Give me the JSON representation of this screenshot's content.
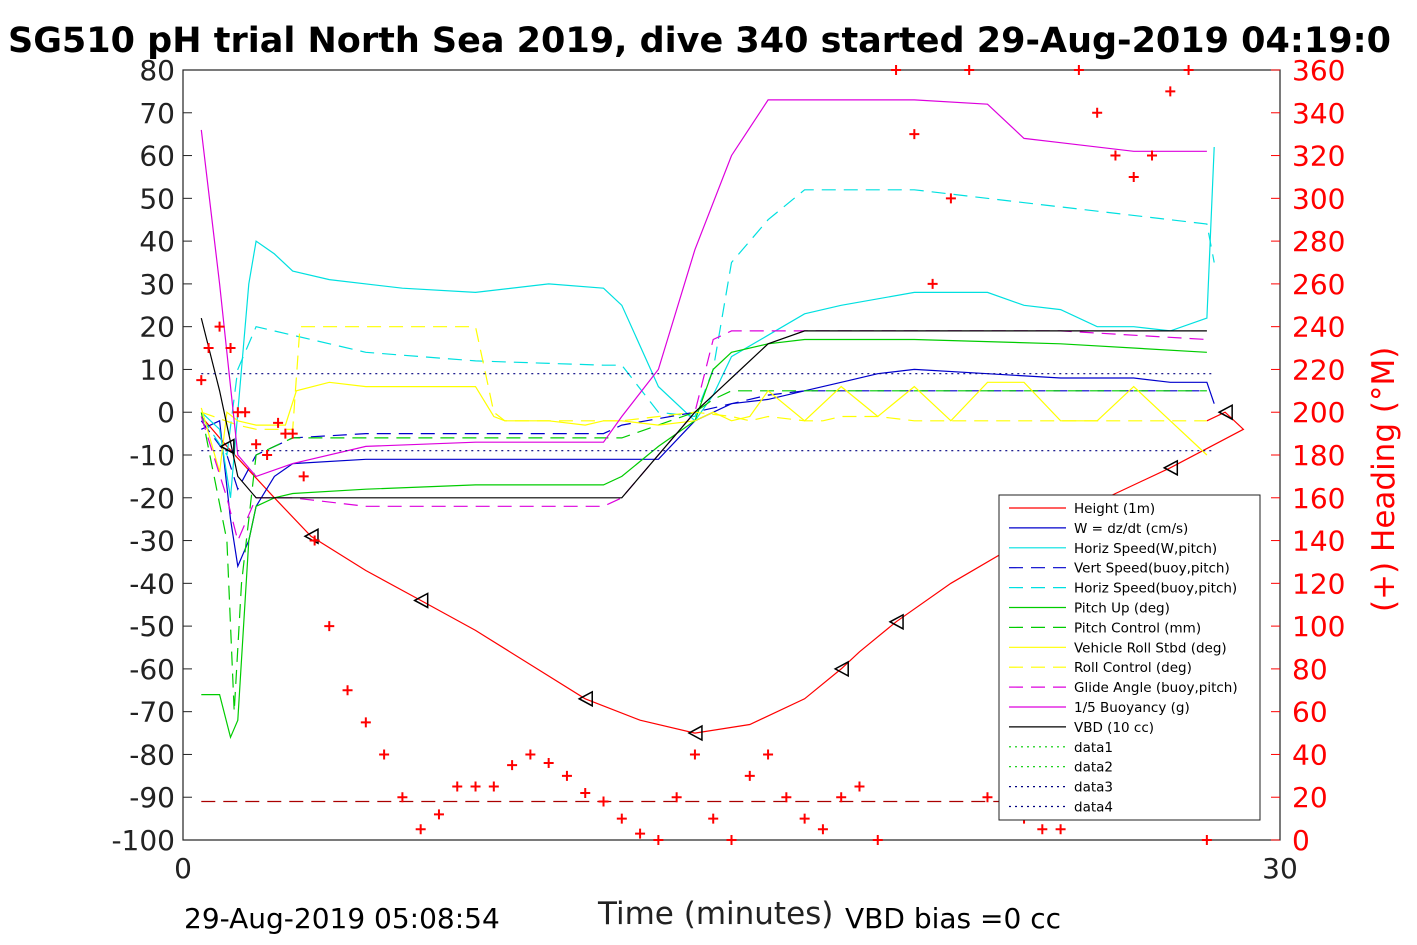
{
  "chart_data": {
    "type": "line",
    "title": "SG510 pH trial North Sea 2019, dive 340 started 29-Aug-2019 04:19:0",
    "xlabel": "Time (minutes)",
    "ylabel_right": "(+) Heading (°M)",
    "xlim": [
      0,
      30
    ],
    "ylim": [
      -100,
      80
    ],
    "ylim_right": [
      0,
      360
    ],
    "x_ticks": [
      "0",
      "30"
    ],
    "y_ticks": [
      "80",
      "70",
      "60",
      "50",
      "40",
      "30",
      "20",
      "10",
      "0",
      "-10",
      "-20",
      "-30",
      "-40",
      "-50",
      "-60",
      "-70",
      "-80",
      "-90",
      "-100"
    ],
    "y_ticks_right": [
      "360",
      "340",
      "320",
      "300",
      "280",
      "260",
      "240",
      "220",
      "200",
      "180",
      "160",
      "140",
      "120",
      "100",
      "80",
      "60",
      "40",
      "20",
      "0"
    ],
    "footer_left": "29-Aug-2019 05:08:54",
    "footer_right": "VBD bias =0 cc",
    "legend_position": "lower-right",
    "series": [
      {
        "name": "Height (1m)",
        "color": "#ff0000",
        "style": "solid",
        "x": [
          0.5,
          1.2,
          2.5,
          3.5,
          5,
          6.5,
          8,
          9.5,
          11,
          12.5,
          14,
          15.5,
          17,
          18,
          18.5,
          19.5,
          21,
          23,
          25,
          27,
          29,
          28.5,
          28
        ],
        "y": [
          -1,
          -8,
          -20,
          -29,
          -37,
          -44,
          -51,
          -59,
          -67,
          -72,
          -75,
          -73,
          -67,
          -60,
          -56,
          -49,
          -40,
          -30,
          -21,
          -13,
          -4,
          0,
          -2
        ]
      },
      {
        "name": "W = dz/dt (cm/s)",
        "color": "#0000cc",
        "style": "solid",
        "x": [
          0.5,
          1,
          1.3,
          1.5,
          1.8,
          2,
          2.5,
          3,
          5,
          8,
          10,
          11,
          12,
          13,
          14,
          15,
          16,
          17,
          18,
          19,
          20,
          22,
          24,
          26,
          27,
          28,
          28.2
        ],
        "y": [
          -4,
          -2,
          -25,
          -36,
          -30,
          -22,
          -15,
          -12,
          -11,
          -11,
          -11,
          -11,
          -11,
          -11,
          -2,
          2,
          3,
          5,
          7,
          9,
          10,
          9,
          8,
          8,
          7,
          7,
          2
        ]
      },
      {
        "name": "Horiz Speed(W,pitch)",
        "color": "#00e0e0",
        "style": "solid",
        "x": [
          0.5,
          1,
          1.3,
          1.5,
          1.8,
          2,
          2.5,
          3,
          4,
          6,
          8,
          10,
          11.5,
          12,
          13,
          14,
          14.5,
          15,
          16,
          17,
          18,
          20,
          22,
          23,
          24,
          25,
          26,
          27,
          28,
          28.2
        ],
        "y": [
          0,
          -4,
          -20,
          0,
          30,
          40,
          37,
          33,
          31,
          29,
          28,
          30,
          29,
          25,
          6,
          -2,
          4,
          13,
          18,
          23,
          25,
          28,
          28,
          25,
          24,
          20,
          20,
          19,
          22,
          62
        ]
      },
      {
        "name": "Vert Speed(buoy,pitch)",
        "color": "#0000cc",
        "style": "dashed",
        "x": [
          0.5,
          1.2,
          1.5,
          2,
          3,
          5,
          8,
          11.5,
          12,
          14,
          15,
          16,
          17,
          20,
          24,
          28
        ],
        "y": [
          -2,
          -10,
          -18,
          -10,
          -6,
          -5,
          -5,
          -5,
          -3,
          0,
          2,
          4,
          5,
          5,
          5,
          5
        ]
      },
      {
        "name": "Horiz Speed(buoy,pitch)",
        "color": "#00e0e0",
        "style": "dashed",
        "x": [
          0.5,
          1.2,
          1.5,
          2,
          3,
          5,
          8,
          11.5,
          12,
          13,
          14,
          14.5,
          15,
          16,
          17,
          20,
          24,
          28,
          28.2
        ],
        "y": [
          -1,
          -10,
          10,
          20,
          18,
          14,
          12,
          11,
          11,
          0,
          -1,
          10,
          35,
          45,
          52,
          52,
          48,
          44,
          35
        ]
      },
      {
        "name": "Pitch Up (deg)",
        "color": "#00cc00",
        "style": "solid",
        "x": [
          0.5,
          1,
          1.3,
          1.5,
          1.8,
          2,
          2.5,
          3,
          5,
          8,
          11.5,
          12,
          13,
          14,
          14.5,
          15,
          16,
          17,
          20,
          24,
          28
        ],
        "y": [
          -66,
          -66,
          -76,
          -72,
          -30,
          -22,
          -20,
          -19,
          -18,
          -17,
          -17,
          -15,
          -8,
          -2,
          10,
          14,
          16,
          17,
          17,
          16,
          14
        ]
      },
      {
        "name": "Pitch Control (mm)",
        "color": "#00cc00",
        "style": "dashed",
        "x": [
          0.5,
          1.2,
          1.4,
          1.6,
          2,
          3,
          5,
          8,
          11.5,
          12,
          14,
          14.5,
          15,
          16,
          20,
          24,
          28
        ],
        "y": [
          0,
          -30,
          -70,
          -40,
          -10,
          -6,
          -6,
          -6,
          -6,
          -6,
          0,
          3,
          5,
          5,
          5,
          5,
          5
        ]
      },
      {
        "name": "Vehicle Roll Stbd (deg)",
        "color": "#ffff00",
        "style": "solid",
        "x": [
          0.5,
          1,
          1.2,
          1.5,
          2,
          2.8,
          3.1,
          4,
          5,
          8,
          8.5,
          8.8,
          10,
          11,
          11.5,
          12,
          13,
          14,
          14.5,
          15,
          15.5,
          16,
          17,
          18,
          19,
          20,
          21,
          22,
          23,
          24,
          25,
          26,
          27,
          28
        ],
        "y": [
          1,
          -14,
          0,
          -2,
          -3,
          -3,
          5,
          7,
          6,
          6,
          -1,
          -2,
          -2,
          -3,
          -2,
          -2,
          -3,
          -2,
          0,
          -2,
          -1,
          5,
          -2,
          6,
          -1,
          6,
          -2,
          7,
          7,
          -2,
          -2,
          6,
          -2,
          -10
        ]
      },
      {
        "name": "Roll Control (deg)",
        "color": "#ffff00",
        "style": "dashed",
        "x": [
          0.5,
          1.5,
          2,
          3,
          3.2,
          8,
          8.5,
          8.8,
          11.5,
          12,
          14,
          15,
          15.5,
          16,
          17,
          17.5,
          18,
          19,
          20,
          22,
          23,
          24,
          25,
          26,
          27,
          28
        ],
        "y": [
          0,
          -3,
          -4,
          -4,
          20,
          20,
          0,
          -2,
          -2,
          -2,
          0,
          -1,
          -2,
          -1,
          -2,
          -2,
          -1,
          -1,
          -2,
          -2,
          -2,
          -2,
          -2,
          -2,
          -2,
          -2
        ]
      },
      {
        "name": "Glide Angle (buoy,pitch)",
        "color": "#dd00dd",
        "style": "dashed",
        "x": [
          0.5,
          1.2,
          1.5,
          2,
          3,
          5,
          8,
          11.5,
          12,
          14,
          14.5,
          15,
          16,
          17,
          20,
          24,
          28
        ],
        "y": [
          -1,
          -20,
          -30,
          -20,
          -20,
          -22,
          -22,
          -22,
          -20,
          0,
          17,
          19,
          19,
          19,
          19,
          19,
          17
        ]
      },
      {
        "name": "1/5 Buoyancy (g)",
        "color": "#dd00dd",
        "style": "solid",
        "x": [
          0.5,
          1,
          1.5,
          2,
          3,
          5,
          8,
          11.5,
          12,
          13,
          14,
          15,
          16,
          20,
          22,
          23,
          24,
          26,
          28
        ],
        "y": [
          66,
          30,
          -10,
          -15,
          -12,
          -8,
          -7,
          -7,
          -1,
          10,
          38,
          60,
          73,
          73,
          72,
          64,
          63,
          61,
          61
        ]
      },
      {
        "name": "VBD (10 cc)",
        "color": "#000000",
        "style": "solid",
        "x": [
          0.5,
          1,
          1.5,
          2,
          5,
          11.5,
          12,
          14,
          15,
          16,
          17,
          28
        ],
        "y": [
          22,
          5,
          -15,
          -20,
          -20,
          -20,
          -20,
          0,
          8,
          16,
          19,
          19
        ]
      },
      {
        "name": "data1",
        "color": "#00cc00",
        "style": "dotted",
        "x": [],
        "y": []
      },
      {
        "name": "data2",
        "color": "#00cc00",
        "style": "dotted",
        "x": [],
        "y": []
      },
      {
        "name": "data3",
        "color": "#000080",
        "style": "dotted",
        "x": [
          0.5,
          28.2
        ],
        "y": [
          9,
          9
        ]
      },
      {
        "name": "data4",
        "color": "#000080",
        "style": "dotted",
        "x": [
          0.5,
          28.2
        ],
        "y": [
          -9,
          -9
        ]
      }
    ],
    "reference_line": {
      "color": "#aa0000",
      "style": "dashed",
      "y": -91
    },
    "heading_series": {
      "name": "(+) Heading (°M)",
      "color": "#ff0000",
      "marker": "+",
      "x": [
        0.5,
        0.7,
        1.0,
        1.3,
        1.5,
        1.7,
        2,
        2.3,
        2.6,
        2.8,
        3,
        3.3,
        3.6,
        4,
        4.5,
        5,
        5.5,
        6,
        6.5,
        7,
        7.5,
        8,
        8.5,
        9,
        9.5,
        10,
        10.5,
        11,
        11.5,
        12,
        12.5,
        13,
        13.5,
        14,
        14.5,
        15,
        15.5,
        16,
        16.5,
        17,
        17.5,
        18,
        18.5,
        19,
        19.5,
        20,
        20.5,
        21,
        21.5,
        22,
        22.5,
        23,
        23.5,
        24,
        24.5,
        25,
        25.5,
        26,
        26.5,
        27,
        27.5,
        28
      ],
      "y": [
        215,
        230,
        240,
        230,
        200,
        200,
        185,
        180,
        195,
        190,
        190,
        170,
        140,
        100,
        70,
        55,
        40,
        20,
        5,
        12,
        25,
        25,
        25,
        35,
        40,
        36,
        30,
        22,
        18,
        10,
        3,
        0,
        20,
        40,
        10,
        0,
        30,
        40,
        20,
        10,
        5,
        20,
        25,
        0,
        360,
        330,
        260,
        300,
        360,
        20,
        40,
        10,
        5,
        5,
        360,
        340,
        320,
        310,
        320,
        350,
        360,
        0
      ]
    }
  }
}
